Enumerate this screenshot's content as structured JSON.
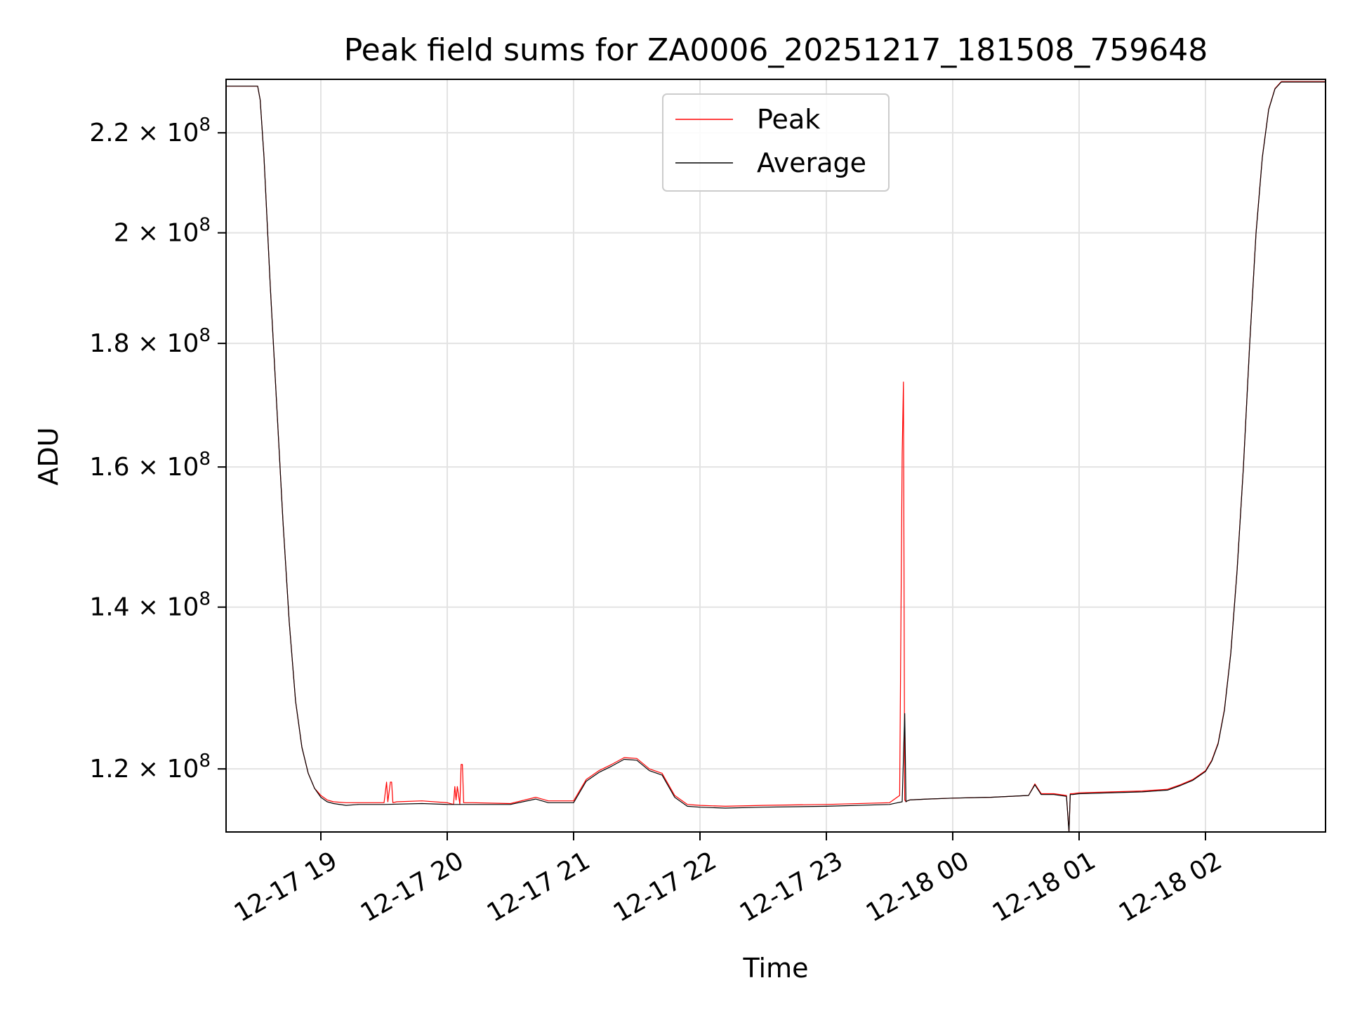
{
  "chart_data": {
    "type": "line",
    "title": "Peak field sums for ZA0006_20251217_181508_759648",
    "xlabel": "Time",
    "ylabel": "ADU",
    "yscale": "log",
    "grid": true,
    "legend_position": "upper center",
    "xlim": [
      18.25,
      26.95
    ],
    "ylim": [
      113000000,
      231500000
    ],
    "x_unit": "hours since 2025-12-17 00:00",
    "x_ticks": [
      {
        "value": 19,
        "label": "12-17 19"
      },
      {
        "value": 20,
        "label": "12-17 20"
      },
      {
        "value": 21,
        "label": "12-17 21"
      },
      {
        "value": 22,
        "label": "12-17 22"
      },
      {
        "value": 23,
        "label": "12-17 23"
      },
      {
        "value": 24,
        "label": "12-18 00"
      },
      {
        "value": 25,
        "label": "12-18 01"
      },
      {
        "value": 26,
        "label": "12-18 02"
      }
    ],
    "y_ticks": [
      {
        "value": 120000000,
        "mantissa": "1.2",
        "exponent": "8"
      },
      {
        "value": 140000000,
        "mantissa": "1.4",
        "exponent": "8"
      },
      {
        "value": 160000000,
        "mantissa": "1.6",
        "exponent": "8"
      },
      {
        "value": 180000000,
        "mantissa": "1.8",
        "exponent": "8"
      },
      {
        "value": 200000000,
        "mantissa": "2",
        "exponent": "8"
      },
      {
        "value": 220000000,
        "mantissa": "2.2",
        "exponent": "8"
      }
    ],
    "series": [
      {
        "name": "Peak",
        "color": "#ff0000",
        "x": [
          18.25,
          18.5,
          18.52,
          18.55,
          18.6,
          18.65,
          18.7,
          18.75,
          18.8,
          18.85,
          18.9,
          18.95,
          19.0,
          19.05,
          19.1,
          19.2,
          19.3,
          19.5,
          19.52,
          19.53,
          19.55,
          19.56,
          19.57,
          19.6,
          19.8,
          20.0,
          20.05,
          20.06,
          20.07,
          20.08,
          20.1,
          20.11,
          20.12,
          20.13,
          20.2,
          20.5,
          20.7,
          20.8,
          21.0,
          21.1,
          21.2,
          21.3,
          21.4,
          21.5,
          21.6,
          21.7,
          21.8,
          21.9,
          22.0,
          22.2,
          22.5,
          23.0,
          23.5,
          23.58,
          23.6,
          23.61,
          23.62,
          23.63,
          23.64,
          23.66,
          23.8,
          24.0,
          24.3,
          24.6,
          24.65,
          24.7,
          24.8,
          24.9,
          24.92,
          24.93,
          24.95,
          25.0,
          25.5,
          25.7,
          25.8,
          25.9,
          26.0,
          26.05,
          26.1,
          26.15,
          26.2,
          26.25,
          26.3,
          26.35,
          26.4,
          26.45,
          26.5,
          26.55,
          26.6,
          26.95
        ],
        "y": [
          230000000,
          230000000,
          227000000,
          215000000,
          190000000,
          170000000,
          152000000,
          138000000,
          128000000,
          122500000,
          119500000,
          117800000,
          117000000,
          116500000,
          116300000,
          116200000,
          116200000,
          116200000,
          118500000,
          116300000,
          118500000,
          118500000,
          116200000,
          116300000,
          116400000,
          116200000,
          116000000,
          118000000,
          116500000,
          118000000,
          116000000,
          120500000,
          120500000,
          116200000,
          116200000,
          116100000,
          116800000,
          116400000,
          116400000,
          118800000,
          119800000,
          120500000,
          121300000,
          121200000,
          120000000,
          119500000,
          117000000,
          116000000,
          115900000,
          115800000,
          115900000,
          116000000,
          116200000,
          117000000,
          162000000,
          173500000,
          116500000,
          116300000,
          116400000,
          116500000,
          116600000,
          116700000,
          116800000,
          117000000,
          118300000,
          117200000,
          117200000,
          117000000,
          113000000,
          117200000,
          117200000,
          117300000,
          117500000,
          117700000,
          118200000,
          118800000,
          119800000,
          121000000,
          123000000,
          127000000,
          134000000,
          145000000,
          160000000,
          180000000,
          200000000,
          215000000,
          225000000,
          229500000,
          231000000,
          231000000
        ],
        "line_width": 1.2
      },
      {
        "name": "Average",
        "color": "#000000",
        "x": [
          18.25,
          18.5,
          18.52,
          18.55,
          18.6,
          18.65,
          18.7,
          18.75,
          18.8,
          18.85,
          18.9,
          18.95,
          19.0,
          19.05,
          19.1,
          19.2,
          19.3,
          19.5,
          19.8,
          20.0,
          20.1,
          20.2,
          20.5,
          20.7,
          20.8,
          21.0,
          21.1,
          21.2,
          21.3,
          21.4,
          21.5,
          21.6,
          21.7,
          21.8,
          21.9,
          22.0,
          22.2,
          22.5,
          23.0,
          23.5,
          23.6,
          23.62,
          23.63,
          23.64,
          23.66,
          23.8,
          24.0,
          24.3,
          24.6,
          24.65,
          24.7,
          24.8,
          24.9,
          24.92,
          24.93,
          24.95,
          25.0,
          25.5,
          25.7,
          25.8,
          25.9,
          26.0,
          26.05,
          26.1,
          26.15,
          26.2,
          26.25,
          26.3,
          26.35,
          26.4,
          26.45,
          26.5,
          26.55,
          26.6,
          26.95
        ],
        "y": [
          230000000,
          230000000,
          227000000,
          215000000,
          190000000,
          170000000,
          152000000,
          138000000,
          128000000,
          122500000,
          119500000,
          117800000,
          116800000,
          116300000,
          116100000,
          115900000,
          116000000,
          116000000,
          116100000,
          116000000,
          116000000,
          116000000,
          116000000,
          116600000,
          116200000,
          116200000,
          118600000,
          119600000,
          120300000,
          121100000,
          121000000,
          119800000,
          119300000,
          116800000,
          115800000,
          115700000,
          115600000,
          115700000,
          115800000,
          116000000,
          116300000,
          126500000,
          116300000,
          116400000,
          116500000,
          116600000,
          116700000,
          116800000,
          117000000,
          118200000,
          117100000,
          117100000,
          116900000,
          113000000,
          117100000,
          117100000,
          117200000,
          117400000,
          117600000,
          118100000,
          118700000,
          119700000,
          120900000,
          122900000,
          126900000,
          133900000,
          144900000,
          159900000,
          179900000,
          199900000,
          214900000,
          224900000,
          229400000,
          230900000,
          230900000
        ],
        "line_width": 1.2
      }
    ]
  }
}
